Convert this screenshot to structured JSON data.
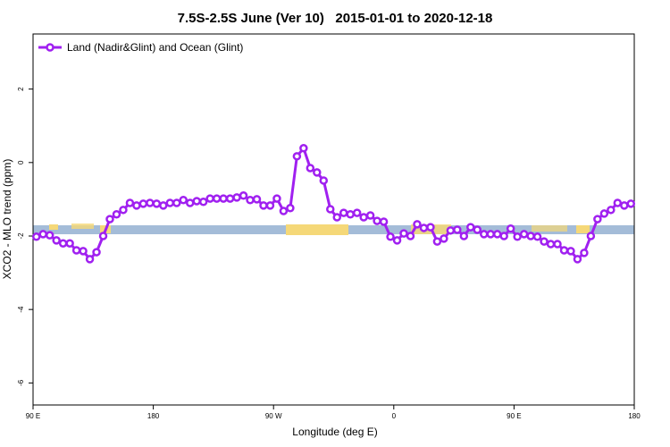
{
  "chart_data": {
    "type": "line",
    "title": "7.5S-2.5S June (Ver 10)   2015-01-01 to 2020-12-18",
    "x_label": "Longitude (deg E)",
    "y_label": "XCO2 - MLO trend (ppm)",
    "legend": "topleft",
    "xlim": [
      90,
      540
    ],
    "xticks": [
      {
        "value": 90,
        "label": "90 E"
      },
      {
        "value": 180,
        "label": "180"
      },
      {
        "value": 270,
        "label": "90 W"
      },
      {
        "value": 360,
        "label": "0"
      },
      {
        "value": 450,
        "label": "90 E"
      },
      {
        "value": 540,
        "label": "180"
      }
    ],
    "ylim": [
      -6.6,
      3.5
    ],
    "yticks": [
      -6,
      -4,
      -2,
      0,
      2
    ],
    "x": [
      92.5,
      97.5,
      102.5,
      107.5,
      112.5,
      117.5,
      122.5,
      127.5,
      132.5,
      137.5,
      142.5,
      147.5,
      152.5,
      157.5,
      162.5,
      167.5,
      172.5,
      177.5,
      182.5,
      187.5,
      192.5,
      197.5,
      202.5,
      207.5,
      212.5,
      217.5,
      222.5,
      227.5,
      232.5,
      237.5,
      242.5,
      247.5,
      252.5,
      257.5,
      262.5,
      267.5,
      272.5,
      277.5,
      282.5,
      287.5,
      292.5,
      297.5,
      302.5,
      307.5,
      312.5,
      317.5,
      322.5,
      327.5,
      332.5,
      337.5,
      342.5,
      347.5,
      352.5,
      357.5,
      362.5,
      367.5,
      372.5,
      377.5,
      382.5,
      387.5,
      392.5,
      397.5,
      402.5,
      407.5,
      412.5,
      417.5,
      422.5,
      427.5,
      432.5,
      437.5,
      442.5,
      447.5,
      452.5,
      457.5,
      462.5,
      467.5,
      472.5,
      477.5,
      482.5,
      487.5,
      492.5,
      497.5,
      502.5,
      507.5,
      512.5,
      517.5,
      522.5,
      527.5,
      532.5,
      537.5
    ],
    "series": [
      {
        "name": "Land (Nadir&Glint) and Ocean (Glint)",
        "color": "#a020f0",
        "values": [
          -2.02,
          -1.95,
          -1.98,
          -2.12,
          -2.2,
          -2.2,
          -2.39,
          -2.41,
          -2.63,
          -2.44,
          -2.0,
          -1.54,
          -1.41,
          -1.29,
          -1.1,
          -1.17,
          -1.12,
          -1.1,
          -1.12,
          -1.17,
          -1.1,
          -1.1,
          -1.02,
          -1.1,
          -1.05,
          -1.07,
          -0.98,
          -0.98,
          -0.98,
          -0.98,
          -0.95,
          -0.9,
          -1.02,
          -1.0,
          -1.17,
          -1.17,
          -0.98,
          -1.32,
          -1.24,
          0.17,
          0.39,
          -0.15,
          -0.27,
          -0.49,
          -1.27,
          -1.49,
          -1.37,
          -1.41,
          -1.37,
          -1.49,
          -1.44,
          -1.59,
          -1.61,
          -2.02,
          -2.12,
          -1.93,
          -2.0,
          -1.68,
          -1.78,
          -1.76,
          -2.15,
          -2.07,
          -1.85,
          -1.83,
          -2.0,
          -1.76,
          -1.83,
          -1.95,
          -1.95,
          -1.95,
          -2.0,
          -1.8,
          -2.02,
          -1.95,
          -2.0,
          -2.02,
          -2.15,
          -2.22,
          -2.22,
          -2.39,
          -2.41,
          -2.63,
          -2.46,
          -2.0,
          -1.54,
          -1.39,
          -1.29,
          -1.1,
          -1.17,
          -1.12
        ]
      }
    ]
  }
}
